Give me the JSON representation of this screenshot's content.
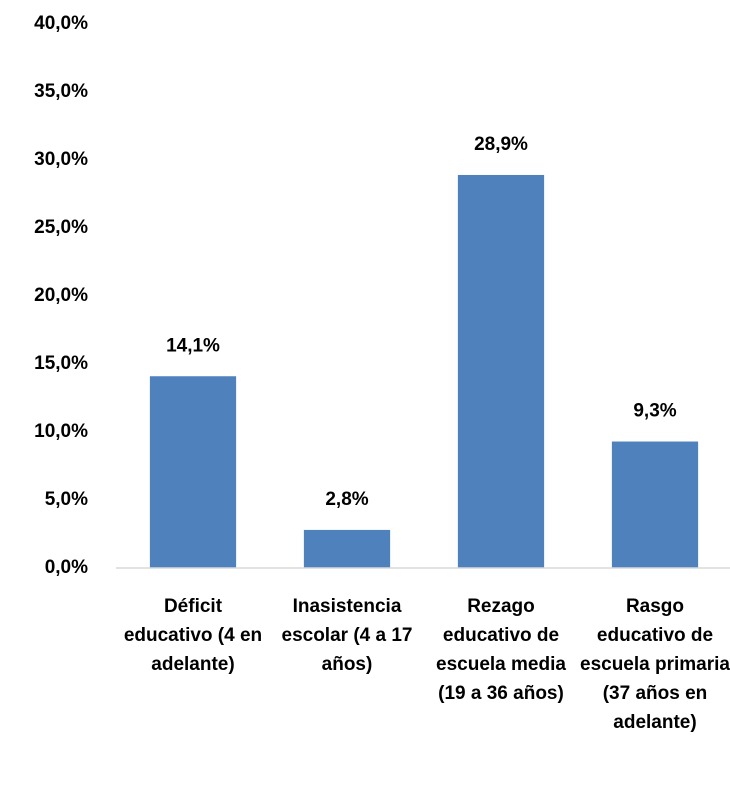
{
  "chart_data": {
    "type": "bar",
    "categories": [
      "Déficit educativo (4 en adelante)",
      "Inasistencia escolar (4 a 17 años)",
      "Rezago educativo de escuela media (19 a 36 años)",
      "Rasgo educativo de escuela primaria (37 años en adelante)"
    ],
    "values": [
      14.1,
      2.8,
      28.9,
      9.3
    ],
    "value_labels": [
      "14,1%",
      "2,8%",
      "28,9%",
      "9,3%"
    ],
    "color": "#4f81bd",
    "ylim": [
      0,
      40
    ],
    "yticks": [
      {
        "value": 0,
        "label": "0,0%"
      },
      {
        "value": 5,
        "label": "5,0%"
      },
      {
        "value": 10,
        "label": "10,0%"
      },
      {
        "value": 15,
        "label": "15,0%"
      },
      {
        "value": 20,
        "label": "20,0%"
      },
      {
        "value": 25,
        "label": "25,0%"
      },
      {
        "value": 30,
        "label": "30,0%"
      },
      {
        "value": 35,
        "label": "35,0%"
      },
      {
        "value": 40,
        "label": "40,0%"
      }
    ],
    "grid": false
  }
}
